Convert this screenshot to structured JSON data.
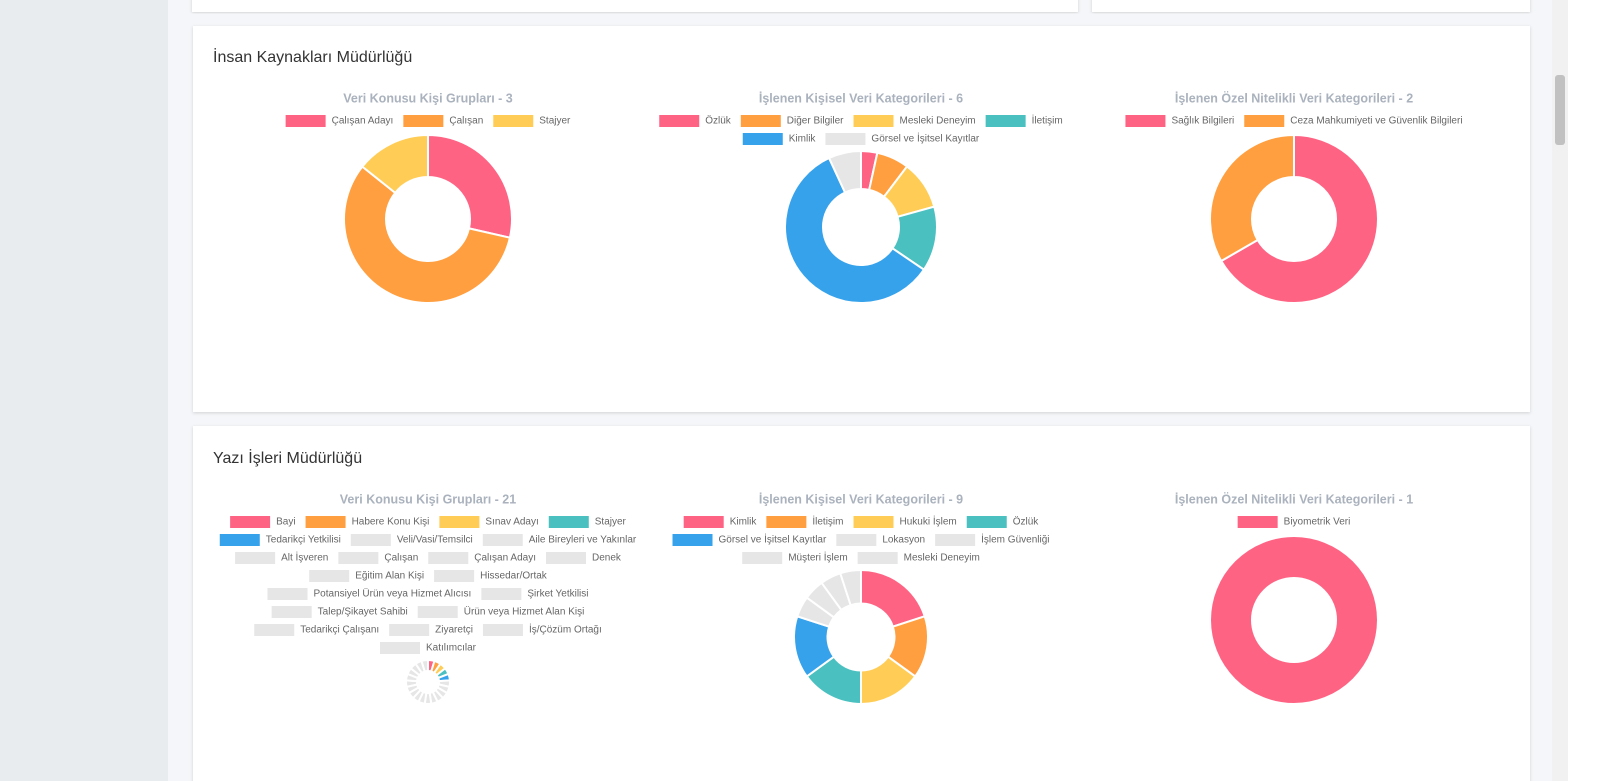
{
  "sections": [
    {
      "title": "İnsan Kaynakları Müdürlüğü",
      "charts": [
        {
          "type": "doughnut",
          "title": "Veri Konusu Kişi Grupları - 3",
          "categories": [
            "Çalışan Adayı",
            "Çalışan",
            "Stajyer"
          ],
          "values": [
            2,
            4,
            1
          ],
          "colors": [
            "#ff6384",
            "#ff9f40",
            "#ffcd56"
          ]
        },
        {
          "type": "doughnut",
          "title": "İşlenen Kişisel Veri Kategorileri - 6",
          "categories": [
            "Özlük",
            "Diğer Bilgiler",
            "Mesleki Deneyim",
            "İletişim",
            "Kimlik",
            "Görsel ve İşitsel Kayıtlar"
          ],
          "values": [
            1,
            2,
            3,
            4,
            17,
            2
          ],
          "colors": [
            "#ff6384",
            "#ff9f40",
            "#ffcd56",
            "#4bc0c0",
            "#36a2eb",
            "#e6e6e6"
          ]
        },
        {
          "type": "doughnut",
          "title": "İşlenen Özel Nitelikli Veri Kategorileri - 2",
          "categories": [
            "Sağlık Bilgileri",
            "Ceza Mahkumiyeti ve Güvenlik Bilgileri"
          ],
          "values": [
            2,
            1
          ],
          "colors": [
            "#ff6384",
            "#ff9f40"
          ]
        }
      ]
    },
    {
      "title": "Yazı İşleri Müdürlüğü",
      "charts": [
        {
          "type": "doughnut",
          "title": "Veri Konusu Kişi Grupları - 21",
          "categories": [
            "Bayi",
            "Habere Konu Kişi",
            "Sınav Adayı",
            "Stajyer",
            "Tedarikçi Yetkilisi",
            "Veli/Vasi/Temsilci",
            "Aile Bireyleri ve Yakınlar",
            "Alt İşveren",
            "Çalışan",
            "Çalışan Adayı",
            "Denek",
            "Eğitim Alan Kişi",
            "Hissedar/Ortak",
            "Potansiyel Ürün veya Hizmet Alıcısı",
            "Şirket Yetkilisi",
            "Talep/Şikayet Sahibi",
            "Ürün veya Hizmet Alan Kişi",
            "Tedarikçi Çalışanı",
            "Ziyaretçi",
            "İş/Çözüm Ortağı",
            "Katılımcılar"
          ],
          "values": [
            1,
            1,
            1,
            1,
            1,
            1,
            1,
            1,
            1,
            1,
            1,
            1,
            1,
            1,
            1,
            1,
            1,
            1,
            1,
            1,
            1
          ],
          "colors": [
            "#ff6384",
            "#ff9f40",
            "#ffcd56",
            "#4bc0c0",
            "#36a2eb",
            "#e6e6e6",
            "#e6e6e6",
            "#e6e6e6",
            "#e6e6e6",
            "#e6e6e6",
            "#e6e6e6",
            "#e6e6e6",
            "#e6e6e6",
            "#e6e6e6",
            "#e6e6e6",
            "#e6e6e6",
            "#e6e6e6",
            "#e6e6e6",
            "#e6e6e6",
            "#e6e6e6",
            "#e6e6e6"
          ]
        },
        {
          "type": "doughnut",
          "title": "İşlenen Kişisel Veri Kategorileri - 9",
          "categories": [
            "Kimlik",
            "İletişim",
            "Hukuki İşlem",
            "Özlük",
            "Görsel ve İşitsel Kayıtlar",
            "Lokasyon",
            "İşlem Güvenliği",
            "Müşteri İşlem",
            "Mesleki Deneyim"
          ],
          "values": [
            4,
            3,
            3,
            3,
            3,
            1,
            1,
            1,
            1
          ],
          "colors": [
            "#ff6384",
            "#ff9f40",
            "#ffcd56",
            "#4bc0c0",
            "#36a2eb",
            "#e6e6e6",
            "#e6e6e6",
            "#e6e6e6",
            "#e6e6e6"
          ]
        },
        {
          "type": "doughnut",
          "title": "İşlenen Özel Nitelikli Veri Kategorileri - 1",
          "categories": [
            "Biyometrik Veri"
          ],
          "values": [
            1
          ],
          "colors": [
            "#ff6384"
          ]
        }
      ]
    }
  ]
}
